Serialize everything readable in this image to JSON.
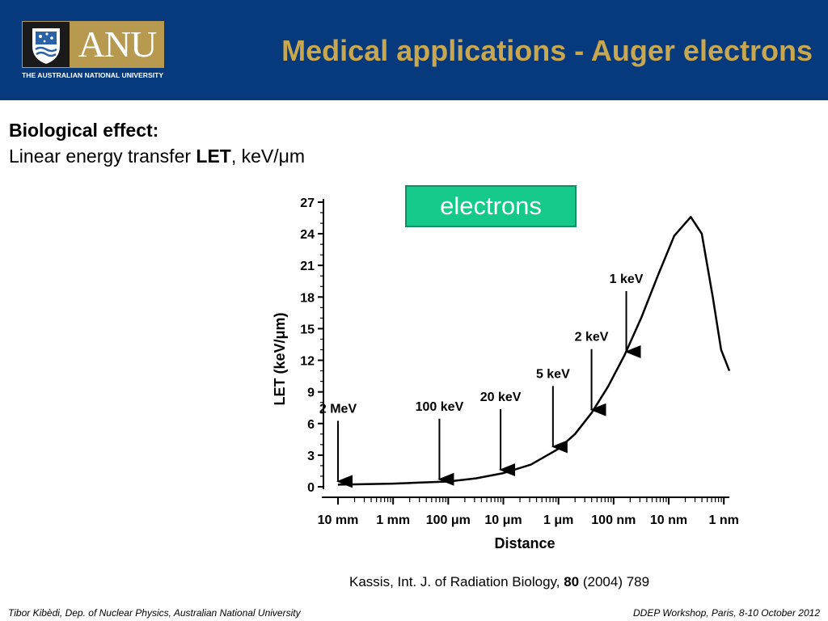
{
  "header": {
    "logo_word": "ANU",
    "logo_subtitle": "THE AUSTRALIAN NATIONAL UNIVERSITY",
    "title": "Medical applications - Auger electrons"
  },
  "subhead": {
    "line1": "Biological effect:",
    "line2_prefix": "Linear energy transfer ",
    "line2_bold": "LET",
    "line2_suffix": ", keV/μm"
  },
  "badge": {
    "label": "electrons"
  },
  "chart_data": {
    "type": "line",
    "ylabel": "LET (keV/μm)",
    "xlabel": "Distance",
    "y_ticks": [
      "0",
      "3",
      "6",
      "9",
      "12",
      "15",
      "18",
      "21",
      "24",
      "27"
    ],
    "ylim": [
      0,
      27
    ],
    "x_ticks": [
      "10 mm",
      "1 mm",
      "100 μm",
      "10 μm",
      "1 μm",
      "100 nm",
      "10 nm",
      "1 nm"
    ],
    "x_ticks_log10_m": [
      -2,
      -3,
      -4,
      -5,
      -6,
      -7,
      -8,
      -9
    ],
    "x_scale": "log, decreasing distance to the right",
    "series": [
      {
        "x_log10_m": [
          -2.0,
          -2.5,
          -3.0,
          -3.5,
          -4.0,
          -4.5,
          -5.0,
          -5.5,
          -6.0,
          -6.3,
          -6.6,
          -6.9,
          -7.2,
          -7.5,
          -7.8,
          -8.1,
          -8.4,
          -8.6,
          -8.8,
          -8.95,
          -9.1
        ],
        "values": [
          0.2,
          0.25,
          0.3,
          0.4,
          0.5,
          0.8,
          1.3,
          2.1,
          3.6,
          5.0,
          7.0,
          9.5,
          12.5,
          16.0,
          20.0,
          23.8,
          25.6,
          24.0,
          18.0,
          13.0,
          11.0
        ]
      }
    ],
    "annotations": [
      {
        "label": "2 MeV",
        "x_log10_m": -2.0,
        "y": 0.2
      },
      {
        "label": "100 keV",
        "x_log10_m": -3.84,
        "y": 0.4
      },
      {
        "label": "20 keV",
        "x_log10_m": -4.95,
        "y": 1.3
      },
      {
        "label": "5 keV",
        "x_log10_m": -5.9,
        "y": 3.5
      },
      {
        "label": "2 keV",
        "x_log10_m": -6.6,
        "y": 7.0
      },
      {
        "label": "1 keV",
        "x_log10_m": -7.23,
        "y": 12.5
      }
    ],
    "grid": false,
    "legend": "none"
  },
  "citation": {
    "prefix": "Kassis, Int. J. of Radiation Biology, ",
    "volume": "80",
    "suffix": " (2004) 789"
  },
  "footer": {
    "left": "Tibor Kibèdi, Dep. of Nuclear Physics, Australian National University",
    "right": "DDEP Workshop, Paris, 8-10 October 2012"
  }
}
